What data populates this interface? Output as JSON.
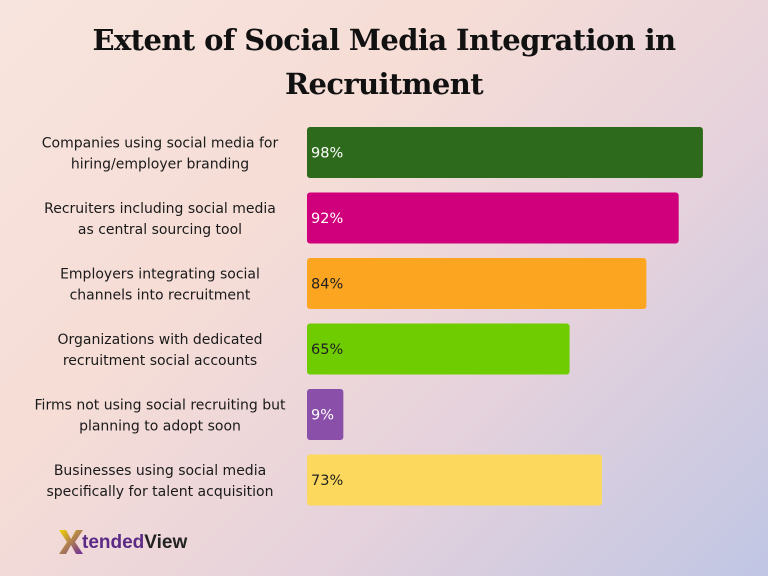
{
  "title": "Extent of Social Media Integration in Recruitment",
  "brand": {
    "part1": "tended",
    "part2": "View",
    "icon": "x-logo-icon"
  },
  "chart_data": {
    "type": "bar",
    "orientation": "horizontal",
    "title": "Extent of Social Media Integration in Recruitment",
    "xlim": [
      0,
      100
    ],
    "grid": false,
    "categories": [
      [
        "Companies using social media for",
        "hiring/employer branding"
      ],
      [
        "Recruiters including social media",
        "as central sourcing tool"
      ],
      [
        "Employers integrating social",
        "channels into recruitment"
      ],
      [
        "Organizations with dedicated",
        "recruitment social accounts"
      ],
      [
        "Firms not using social recruiting but",
        "planning to adopt soon"
      ],
      [
        "Businesses using social media",
        "specifically for talent acquisition"
      ]
    ],
    "values": [
      98,
      92,
      84,
      65,
      9,
      73
    ],
    "data_labels": [
      "98%",
      "92%",
      "84%",
      "65%",
      "9%",
      "73%"
    ],
    "colors": [
      "#2e6a1c",
      "#d0007c",
      "#fba520",
      "#6fcc00",
      "#8a4fa8",
      "#fcd95c"
    ],
    "label_colors": [
      "#ffffff",
      "#ffffff",
      "#222222",
      "#222222",
      "#ffffff",
      "#222222"
    ]
  }
}
